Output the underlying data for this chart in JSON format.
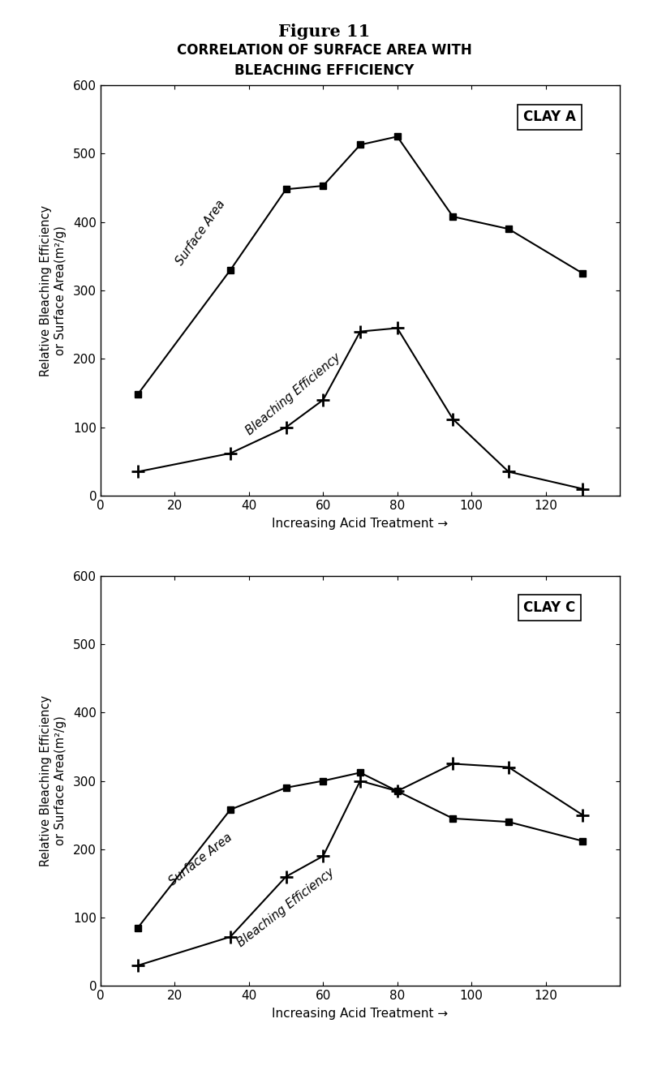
{
  "title_line1": "Figure 11",
  "title_line2": "CORRELATION OF SURFACE AREA WITH\nBLEACHING EFFICIENCY",
  "ylabel": "Relative Bleaching Efficiency\nor Surface Area(m²/g)",
  "xlabel": "Increasing Acid Treatment →",
  "clay_a_label": "CLAY A",
  "clay_a_surface_x": [
    10,
    35,
    50,
    60,
    70,
    80,
    95,
    110,
    130
  ],
  "clay_a_surface_y": [
    148,
    330,
    448,
    453,
    513,
    525,
    408,
    390,
    325
  ],
  "clay_a_bleach_x": [
    10,
    35,
    50,
    60,
    70,
    80,
    95,
    110,
    130
  ],
  "clay_a_bleach_y": [
    35,
    62,
    100,
    140,
    240,
    245,
    112,
    35,
    10
  ],
  "clay_c_label": "CLAY C",
  "clay_c_surface_x": [
    10,
    35,
    50,
    60,
    70,
    80,
    95,
    110,
    130
  ],
  "clay_c_surface_y": [
    85,
    258,
    290,
    300,
    312,
    285,
    245,
    240,
    212
  ],
  "clay_c_bleach_x": [
    10,
    35,
    50,
    60,
    70,
    80,
    95,
    110,
    130
  ],
  "clay_c_bleach_y": [
    30,
    72,
    160,
    190,
    300,
    285,
    325,
    320,
    250
  ],
  "ylim": [
    0,
    600
  ],
  "xlim": [
    0,
    140
  ],
  "xticks": [
    0,
    20,
    40,
    60,
    80,
    100,
    120
  ],
  "yticks": [
    0,
    100,
    200,
    300,
    400,
    500,
    600
  ],
  "line_color": "#000000",
  "bg_color": "#ffffff",
  "surface_marker": "s",
  "bleach_marker": "+"
}
